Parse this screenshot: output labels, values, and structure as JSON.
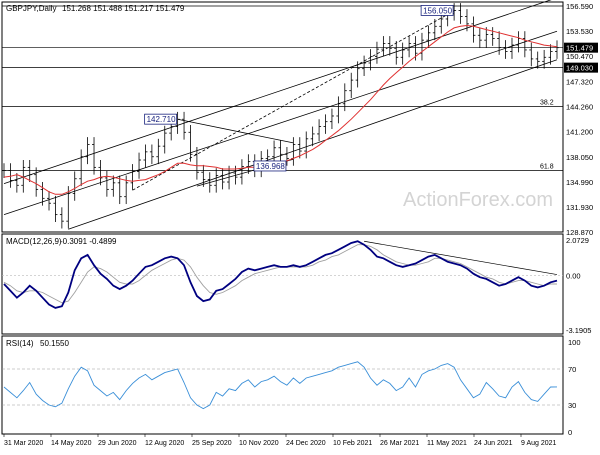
{
  "header": {
    "symbol": "GBPJPY,Daily",
    "ohlc": "151.268 151.488 151.217 151.479"
  },
  "watermark": "ActionForex.com",
  "chart_data": [
    {
      "type": "candlestick",
      "panel": "price",
      "ylim": [
        128.87,
        156.59
      ],
      "price_axis_ticks": [
        131.93,
        134.99,
        138.05,
        141.2,
        144.26,
        147.32,
        150.47,
        153.53,
        156.59
      ],
      "x_dates": [
        "31 Mar 2020",
        "14 May 2020",
        "29 Jun 2020",
        "12 Aug 2020",
        "25 Sep 2020",
        "10 Nov 2020",
        "24 Dec 2020",
        "10 Feb 2021",
        "26 Mar 2021",
        "11 May 2021",
        "24 Jun 2021",
        "9 Aug 2021"
      ],
      "price_series": [
        136.4,
        135.2,
        134.6,
        136.8,
        135.9,
        134.1,
        133.0,
        132.4,
        131.0,
        130.2,
        133.6,
        135.4,
        138.1,
        139.6,
        136.8,
        135.5,
        134.1,
        134.9,
        133.2,
        134.9,
        136.3,
        137.7,
        138.7,
        138.1,
        139.4,
        141.0,
        141.8,
        142.7,
        141.1,
        138.4,
        136.2,
        135.3,
        134.6,
        135.8,
        135.0,
        136.1,
        135.6,
        136.9,
        137.5,
        136.5,
        137.9,
        138.1,
        139.2,
        138.4,
        137.9,
        139.6,
        138.8,
        140.3,
        140.9,
        141.8,
        142.4,
        143.1,
        144.6,
        146.2,
        147.5,
        148.9,
        149.6,
        150.4,
        151.3,
        152.0,
        151.4,
        150.3,
        151.2,
        152.0,
        150.8,
        152.4,
        153.3,
        154.1,
        155.0,
        155.7,
        156.05,
        155.3,
        154.4,
        153.0,
        152.4,
        153.1,
        152.6,
        151.5,
        151.0,
        151.8,
        152.6,
        151.2,
        150.1,
        149.8,
        150.3,
        151.0,
        151.479
      ],
      "ma_line": [
        135.6,
        135.7,
        135.9,
        135.6,
        135.2,
        134.8,
        134.3,
        133.8,
        133.5,
        133.5,
        133.8,
        134.2,
        134.7,
        135.1,
        135.3,
        135.6,
        135.7,
        135.6,
        135.4,
        135.2,
        135.1,
        135.2,
        135.3,
        135.6,
        135.9,
        136.3,
        136.8,
        137.3,
        137.3,
        137.1,
        137.0,
        137.0,
        136.9,
        136.8,
        136.6,
        136.6,
        136.6,
        136.7,
        136.8,
        136.8,
        136.9,
        137.0,
        137.2,
        137.4,
        137.6,
        137.9,
        138.2,
        138.6,
        139.0,
        139.5,
        140.1,
        140.7,
        141.3,
        142.0,
        142.7,
        143.5,
        144.3,
        145.1,
        146.0,
        146.9,
        147.7,
        148.4,
        149.1,
        149.8,
        150.4,
        151.0,
        151.6,
        152.2,
        152.8,
        153.4,
        153.9,
        154.1,
        154.2,
        154.1,
        153.9,
        153.7,
        153.5,
        153.3,
        153.1,
        152.9,
        152.7,
        152.4,
        152.2,
        152.0,
        151.8,
        151.7,
        151.6
      ],
      "annotations": [
        {
          "label": "156.050",
          "kind": "boxed"
        },
        {
          "label": "142.710",
          "kind": "boxed"
        },
        {
          "label": "136.968",
          "kind": "boxed"
        },
        {
          "label": "38.2",
          "kind": "fib"
        },
        {
          "label": "61.8",
          "kind": "fib"
        }
      ],
      "axis_labels": [
        {
          "label": "156.590",
          "value": 156.59
        },
        {
          "label": "153.530",
          "value": 153.53
        },
        {
          "label": "151.479",
          "value": 151.479,
          "highlight": true
        },
        {
          "label": "150.470",
          "value": 150.47
        },
        {
          "label": "149.030",
          "value": 149.03,
          "highlight": true
        },
        {
          "label": "147.320",
          "value": 147.32
        },
        {
          "label": "144.260",
          "value": 144.26
        },
        {
          "label": "141.200",
          "value": 141.2
        },
        {
          "label": "138.050",
          "value": 138.05
        },
        {
          "label": "134.990",
          "value": 134.99
        },
        {
          "label": "131.930",
          "value": 131.93
        },
        {
          "label": "128.870",
          "value": 128.87
        }
      ],
      "horizontal_levels": [
        156.59,
        151.479,
        149.03,
        144.26,
        136.4
      ],
      "colors": {
        "bars": "#000000",
        "ma": "#e03030",
        "channel": "#000000",
        "highlight_bg": "#000000",
        "highlight_fg": "#ffffff"
      }
    },
    {
      "type": "line",
      "panel": "macd",
      "title": "MACD(12,26,9)",
      "values_label": "-0.3091 -0.4899",
      "ylim": [
        -3.1905,
        2.0729
      ],
      "axis_labels": [
        "2.0729",
        "0.00",
        "-3.1905"
      ],
      "macd": [
        -0.5,
        -0.9,
        -1.3,
        -1.0,
        -0.6,
        -0.9,
        -1.3,
        -1.7,
        -1.9,
        -1.8,
        -1.0,
        0.3,
        1.0,
        1.2,
        0.6,
        0.1,
        -0.2,
        -0.6,
        -0.8,
        -0.6,
        -0.3,
        0.1,
        0.5,
        0.6,
        0.8,
        1.0,
        1.1,
        1.0,
        0.6,
        -0.4,
        -1.2,
        -1.5,
        -1.4,
        -0.9,
        -0.8,
        -0.5,
        -0.2,
        0.2,
        0.4,
        0.3,
        0.4,
        0.5,
        0.6,
        0.5,
        0.5,
        0.6,
        0.5,
        0.6,
        0.8,
        1.0,
        1.2,
        1.3,
        1.5,
        1.7,
        1.9,
        2.0,
        1.8,
        1.5,
        1.1,
        1.0,
        0.8,
        0.6,
        0.5,
        0.6,
        0.7,
        0.9,
        1.1,
        1.2,
        1.0,
        0.8,
        0.7,
        0.6,
        0.4,
        0.1,
        -0.1,
        -0.2,
        -0.4,
        -0.6,
        -0.5,
        -0.3,
        -0.1,
        -0.3,
        -0.6,
        -0.7,
        -0.6,
        -0.4,
        -0.3
      ],
      "signal": [
        -0.4,
        -0.6,
        -0.9,
        -1.0,
        -0.9,
        -0.9,
        -1.0,
        -1.2,
        -1.4,
        -1.6,
        -1.5,
        -1.0,
        -0.4,
        0.2,
        0.5,
        0.4,
        0.2,
        -0.1,
        -0.4,
        -0.5,
        -0.5,
        -0.3,
        0.0,
        0.3,
        0.5,
        0.7,
        0.9,
        1.0,
        0.9,
        0.5,
        -0.1,
        -0.6,
        -1.0,
        -1.1,
        -1.0,
        -0.8,
        -0.6,
        -0.3,
        -0.1,
        0.1,
        0.2,
        0.3,
        0.4,
        0.5,
        0.5,
        0.5,
        0.5,
        0.5,
        0.6,
        0.8,
        0.9,
        1.1,
        1.2,
        1.4,
        1.6,
        1.8,
        1.8,
        1.7,
        1.5,
        1.2,
        1.0,
        0.8,
        0.7,
        0.6,
        0.6,
        0.7,
        0.8,
        1.0,
        1.0,
        0.9,
        0.8,
        0.7,
        0.5,
        0.3,
        0.1,
        -0.1,
        -0.2,
        -0.4,
        -0.5,
        -0.4,
        -0.3,
        -0.3,
        -0.4,
        -0.5,
        -0.6,
        -0.5,
        -0.5
      ],
      "colors": {
        "macd": "#000080",
        "signal": "#a0a0a0"
      }
    },
    {
      "type": "line",
      "panel": "rsi",
      "title": "RSI(14)",
      "value_label": "50.1550",
      "ylim": [
        0,
        100
      ],
      "axis_labels": [
        "100",
        "70",
        "30",
        "0"
      ],
      "levels": [
        70,
        30
      ],
      "rsi": [
        50,
        44,
        38,
        46,
        55,
        42,
        35,
        30,
        28,
        32,
        48,
        62,
        72,
        68,
        52,
        46,
        40,
        44,
        36,
        46,
        54,
        60,
        64,
        58,
        62,
        66,
        68,
        70,
        55,
        38,
        30,
        26,
        30,
        44,
        40,
        48,
        46,
        54,
        58,
        50,
        56,
        58,
        62,
        56,
        52,
        60,
        54,
        60,
        62,
        64,
        66,
        68,
        72,
        74,
        76,
        78,
        72,
        60,
        52,
        58,
        54,
        46,
        50,
        60,
        50,
        64,
        68,
        70,
        74,
        76,
        72,
        58,
        48,
        38,
        42,
        55,
        48,
        40,
        38,
        50,
        56,
        44,
        36,
        34,
        42,
        50,
        50.155
      ],
      "colors": {
        "rsi": "#3a8fd8",
        "levels": "#999999"
      }
    }
  ]
}
